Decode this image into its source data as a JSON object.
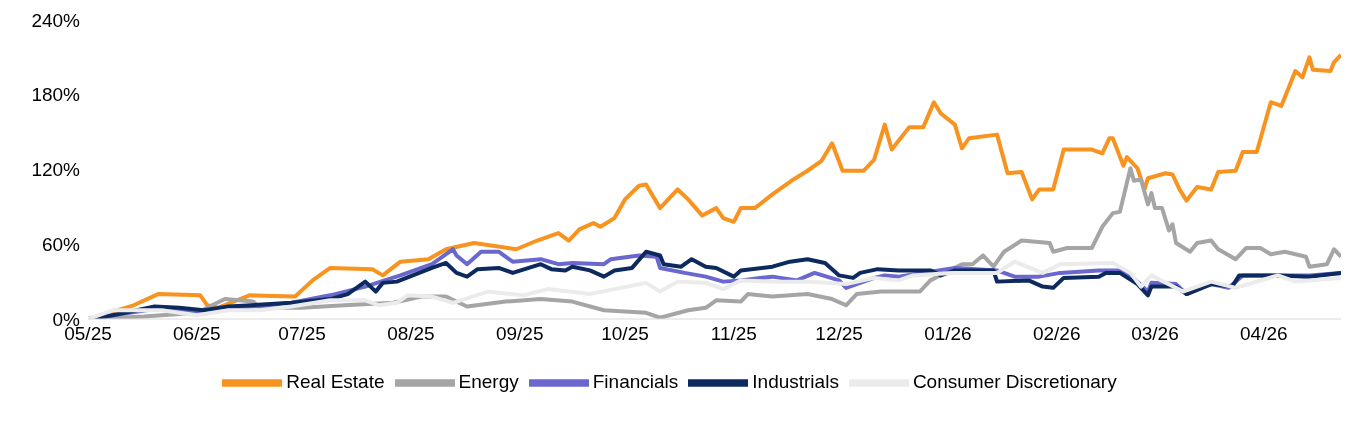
{
  "chart_data": {
    "type": "line",
    "xlim": [
      "2025-05-01",
      "2026-04-23"
    ],
    "ylim": [
      0,
      240
    ],
    "xticks": [
      {
        "value": "2025-05-01",
        "label": "05/25"
      },
      {
        "value": "2025-06-01",
        "label": "06/25"
      },
      {
        "value": "2025-07-01",
        "label": "07/25"
      },
      {
        "value": "2025-08-01",
        "label": "08/25"
      },
      {
        "value": "2025-09-01",
        "label": "09/25"
      },
      {
        "value": "2025-10-01",
        "label": "10/25"
      },
      {
        "value": "2025-11-01",
        "label": "11/25"
      },
      {
        "value": "2025-12-01",
        "label": "12/25"
      },
      {
        "value": "2026-01-01",
        "label": "01/26"
      },
      {
        "value": "2026-02-01",
        "label": "02/26"
      },
      {
        "value": "2026-03-01",
        "label": "03/26"
      },
      {
        "value": "2026-04-01",
        "label": "04/26"
      }
    ],
    "yticks": [
      {
        "value": 0,
        "label": "0%"
      },
      {
        "value": 60,
        "label": "60%"
      },
      {
        "value": 120,
        "label": "120%"
      },
      {
        "value": 180,
        "label": "180%"
      },
      {
        "value": 240,
        "label": "240%"
      }
    ],
    "grid": false,
    "legend": "bottom",
    "marker": "none",
    "line_style": "solid",
    "series": [
      {
        "name": "Real Estate",
        "color": "#f7931e",
        "x": [
          "2025-05-01",
          "2025-05-14",
          "2025-05-21",
          "2025-06-02",
          "2025-06-04",
          "2025-06-07",
          "2025-06-16",
          "2025-06-29",
          "2025-07-04",
          "2025-07-09",
          "2025-07-21",
          "2025-07-24",
          "2025-07-29",
          "2025-08-06",
          "2025-08-11",
          "2025-08-19",
          "2025-08-31",
          "2025-09-06",
          "2025-09-12",
          "2025-09-15",
          "2025-09-18",
          "2025-09-22",
          "2025-09-24",
          "2025-09-28",
          "2025-10-01",
          "2025-10-05",
          "2025-10-07",
          "2025-10-11",
          "2025-10-16",
          "2025-10-19",
          "2025-10-23",
          "2025-10-27",
          "2025-10-29",
          "2025-11-01",
          "2025-11-03",
          "2025-11-07",
          "2025-11-12",
          "2025-11-18",
          "2025-11-22",
          "2025-11-26",
          "2025-11-29",
          "2025-12-02",
          "2025-12-08",
          "2025-12-11",
          "2025-12-14",
          "2025-12-16",
          "2025-12-21",
          "2025-12-25",
          "2025-12-28",
          "2025-12-30",
          "2026-01-03",
          "2026-01-05",
          "2026-01-07",
          "2026-01-15",
          "2026-01-18",
          "2026-01-22",
          "2026-01-25",
          "2026-01-27",
          "2026-01-31",
          "2026-02-03",
          "2026-02-11",
          "2026-02-14",
          "2026-02-16",
          "2026-02-17",
          "2026-02-20",
          "2026-02-21",
          "2026-02-24",
          "2026-02-26",
          "2026-02-27",
          "2026-03-04",
          "2026-03-06",
          "2026-03-08",
          "2026-03-10",
          "2026-03-13",
          "2026-03-17",
          "2026-03-19",
          "2026-03-24",
          "2026-03-26",
          "2026-03-30",
          "2026-04-03",
          "2026-04-06",
          "2026-04-10",
          "2026-04-12",
          "2026-04-14",
          "2026-04-15",
          "2026-04-20",
          "2026-04-21",
          "2026-04-23"
        ],
        "values": [
          0,
          11,
          20,
          19,
          11,
          9,
          19,
          18,
          31,
          41,
          40,
          35,
          46,
          48,
          56,
          61,
          56,
          63,
          69,
          63,
          72,
          77,
          74,
          81,
          96,
          107,
          108,
          89,
          104,
          96,
          83,
          89,
          81,
          78,
          89,
          89,
          100,
          112,
          119,
          127,
          141,
          119,
          119,
          128,
          156,
          136,
          154,
          154,
          174,
          165,
          156,
          137,
          145,
          148,
          117,
          118,
          96,
          104,
          104,
          136,
          136,
          133,
          145,
          145,
          123,
          130,
          121,
          104,
          113,
          117,
          116,
          104,
          95,
          106,
          104,
          118,
          119,
          134,
          134,
          174,
          171,
          199,
          194,
          210,
          200,
          199,
          206,
          212
        ]
      },
      {
        "name": "Energy",
        "color": "#a5a5a5",
        "x": [
          "2025-05-01",
          "2025-05-17",
          "2025-06-01",
          "2025-06-09",
          "2025-06-17",
          "2025-06-19",
          "2025-07-01",
          "2025-07-13",
          "2025-07-27",
          "2025-08-04",
          "2025-08-11",
          "2025-08-17",
          "2025-08-28",
          "2025-09-07",
          "2025-09-16",
          "2025-09-25",
          "2025-10-07",
          "2025-10-11",
          "2025-10-19",
          "2025-10-24",
          "2025-10-27",
          "2025-11-03",
          "2025-11-05",
          "2025-11-12",
          "2025-11-22",
          "2025-11-29",
          "2025-12-03",
          "2025-12-06",
          "2025-12-13",
          "2025-12-24",
          "2025-12-27",
          "2026-01-05",
          "2026-01-08",
          "2026-01-11",
          "2026-01-14",
          "2026-01-17",
          "2026-01-22",
          "2026-01-30",
          "2026-01-31",
          "2026-02-04",
          "2026-02-11",
          "2026-02-14",
          "2026-02-17",
          "2026-02-19",
          "2026-02-22",
          "2026-02-23",
          "2026-02-25",
          "2026-02-27",
          "2026-02-28",
          "2026-03-01",
          "2026-03-03",
          "2026-03-05",
          "2026-03-06",
          "2026-03-07",
          "2026-03-11",
          "2026-03-13",
          "2026-03-17",
          "2026-03-19",
          "2026-03-24",
          "2026-03-27",
          "2026-03-31",
          "2026-04-03",
          "2026-04-07",
          "2026-04-13",
          "2026-04-14",
          "2026-04-19",
          "2026-04-21",
          "2026-04-23"
        ],
        "values": [
          0,
          2,
          5,
          16,
          14,
          9,
          9,
          11,
          13,
          18,
          18,
          10,
          14,
          16,
          14,
          7,
          5,
          1,
          7,
          9,
          15,
          14,
          20,
          18,
          20,
          16,
          11,
          20,
          22,
          22,
          31,
          44,
          44,
          51,
          42,
          54,
          63,
          61,
          54,
          57,
          57,
          74,
          85,
          86,
          121,
          111,
          112,
          92,
          101,
          89,
          89,
          71,
          76,
          61,
          54,
          61,
          63,
          56,
          48,
          57,
          57,
          52,
          54,
          50,
          42,
          44,
          56,
          50
        ]
      },
      {
        "name": "Financials",
        "color": "#6a67ce",
        "x": [
          "2025-05-01",
          "2025-05-08",
          "2025-05-20",
          "2025-06-03",
          "2025-06-28",
          "2025-07-09",
          "2025-07-19",
          "2025-07-29",
          "2025-08-07",
          "2025-08-13",
          "2025-08-14",
          "2025-08-17",
          "2025-08-21",
          "2025-08-26",
          "2025-08-30",
          "2025-09-07",
          "2025-09-12",
          "2025-09-16",
          "2025-09-25",
          "2025-09-27",
          "2025-10-05",
          "2025-10-10",
          "2025-10-11",
          "2025-10-18",
          "2025-10-24",
          "2025-10-29",
          "2025-11-03",
          "2025-11-12",
          "2025-11-19",
          "2025-11-24",
          "2025-12-01",
          "2025-12-03",
          "2025-12-11",
          "2025-12-14",
          "2025-12-18",
          "2026-01-03",
          "2026-01-15",
          "2026-01-20",
          "2026-01-27",
          "2026-02-02",
          "2026-02-13",
          "2026-02-19",
          "2026-02-24",
          "2026-02-27",
          "2026-02-28",
          "2026-03-07",
          "2026-03-10",
          "2026-03-17",
          "2026-03-22",
          "2026-03-26",
          "2026-04-05",
          "2026-04-14",
          "2026-04-23"
        ],
        "values": [
          0,
          3,
          8,
          6,
          13,
          19,
          26,
          35,
          44,
          56,
          51,
          44,
          54,
          54,
          46,
          48,
          44,
          45,
          44,
          48,
          51,
          50,
          41,
          37,
          34,
          30,
          31,
          34,
          31,
          37,
          31,
          25,
          33,
          35,
          34,
          41,
          39,
          34,
          34,
          37,
          39,
          39,
          30,
          22,
          29,
          28,
          20,
          28,
          25,
          35,
          35,
          35,
          37
        ]
      },
      {
        "name": "Industrials",
        "color": "#0c2a5e",
        "x": [
          "2025-05-01",
          "2025-05-08",
          "2025-05-20",
          "2025-05-27",
          "2025-06-03",
          "2025-06-10",
          "2025-06-28",
          "2025-07-09",
          "2025-07-14",
          "2025-07-19",
          "2025-07-22",
          "2025-07-24",
          "2025-07-28",
          "2025-08-07",
          "2025-08-11",
          "2025-08-14",
          "2025-08-17",
          "2025-08-20",
          "2025-08-26",
          "2025-08-30",
          "2025-09-07",
          "2025-09-10",
          "2025-09-14",
          "2025-09-16",
          "2025-09-21",
          "2025-09-25",
          "2025-09-28",
          "2025-10-03",
          "2025-10-07",
          "2025-10-11",
          "2025-10-12",
          "2025-10-17",
          "2025-10-20",
          "2025-10-24",
          "2025-10-27",
          "2025-11-01",
          "2025-11-03",
          "2025-11-12",
          "2025-11-17",
          "2025-11-22",
          "2025-11-27",
          "2025-12-01",
          "2025-12-05",
          "2025-12-07",
          "2025-12-12",
          "2025-12-18",
          "2025-12-27",
          "2025-12-30",
          "2026-01-03",
          "2026-01-14",
          "2026-01-15",
          "2026-01-24",
          "2026-01-28",
          "2026-01-31",
          "2026-02-03",
          "2026-02-13",
          "2026-02-15",
          "2026-02-19",
          "2026-02-24",
          "2026-02-27",
          "2026-02-28",
          "2026-03-07",
          "2026-03-10",
          "2026-03-17",
          "2026-03-23",
          "2026-03-25",
          "2026-04-05",
          "2026-04-14",
          "2026-04-23"
        ],
        "values": [
          0,
          3,
          10,
          9,
          7,
          10,
          13,
          16,
          20,
          30,
          22,
          29,
          30,
          41,
          45,
          37,
          34,
          40,
          41,
          37,
          44,
          40,
          39,
          42,
          39,
          34,
          39,
          41,
          54,
          51,
          44,
          42,
          48,
          42,
          41,
          34,
          39,
          42,
          46,
          48,
          45,
          35,
          33,
          37,
          40,
          39,
          39,
          35,
          39,
          39,
          30,
          31,
          26,
          25,
          33,
          34,
          37,
          37,
          28,
          19,
          26,
          26,
          20,
          28,
          26,
          35,
          35,
          34,
          37
        ]
      },
      {
        "name": "Consumer Discretionary",
        "color": "#ebebeb",
        "x": [
          "2025-05-01",
          "2025-05-08",
          "2025-05-22",
          "2025-06-01",
          "2025-06-10",
          "2025-06-19",
          "2025-06-28",
          "2025-07-09",
          "2025-07-19",
          "2025-07-23",
          "2025-07-28",
          "2025-07-31",
          "2025-08-07",
          "2025-08-13",
          "2025-08-23",
          "2025-09-02",
          "2025-09-09",
          "2025-09-21",
          "2025-09-28",
          "2025-10-07",
          "2025-10-11",
          "2025-10-16",
          "2025-10-24",
          "2025-10-29",
          "2025-11-03",
          "2025-11-12",
          "2025-11-22",
          "2025-12-03",
          "2025-12-11",
          "2025-12-18",
          "2025-12-22",
          "2026-01-02",
          "2026-01-15",
          "2026-01-20",
          "2026-01-28",
          "2026-02-02",
          "2026-02-17",
          "2026-02-22",
          "2026-02-25",
          "2026-02-28",
          "2026-03-09",
          "2026-03-17",
          "2026-03-24",
          "2026-04-05",
          "2026-04-10",
          "2026-04-23"
        ],
        "values": [
          0,
          7,
          7,
          3,
          7,
          7,
          10,
          15,
          15,
          11,
          13,
          19,
          18,
          13,
          22,
          19,
          24,
          20,
          24,
          29,
          22,
          30,
          29,
          24,
          31,
          30,
          30,
          28,
          33,
          31,
          35,
          37,
          37,
          46,
          37,
          44,
          45,
          37,
          26,
          35,
          22,
          30,
          25,
          35,
          30,
          33
        ]
      }
    ]
  }
}
